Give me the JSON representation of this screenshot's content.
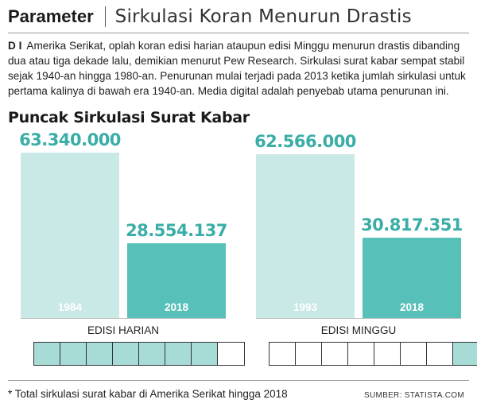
{
  "header": {
    "rubric": "Parameter",
    "headline": "Sirkulasi Koran Menurun Drastis"
  },
  "intro": {
    "dateline": "D I",
    "body": "Amerika Serikat, oplah koran edisi harian ataupun edisi Minggu menurun drastis dibanding dua atau tiga dekade lalu, demikian menurut Pew Research. Sirkulasi surat kabar sempat stabil sejak 1940-an hingga 1980-an. Penurunan mulai terjadi pada 2013 ketika jumlah sirkulasi untuk pertama kalinya di bawah era 1940-an. Media digital adalah penyebab utama penurunan ini."
  },
  "colors": {
    "peak_bar": "#c9e9e6",
    "recent_bar": "#57c1b9",
    "value_text": "#3aaea6",
    "share_filled": "#a6dbd6",
    "share_empty": "#ffffff"
  },
  "chart_data": {
    "type": "bar",
    "title": "Puncak Sirkulasi Surat Kabar",
    "ylim": [
      0,
      70000000
    ],
    "groups": [
      {
        "label": "EDISI HARIAN",
        "bars": [
          {
            "year": "1984",
            "value": 63340000,
            "value_label": "63.340.000"
          },
          {
            "year": "2018",
            "value": 28554137,
            "value_label": "28.554.137"
          }
        ],
        "share_cells": {
          "filled": 7,
          "total": 8,
          "filled_from": "left"
        }
      },
      {
        "label": "EDISI MINGGU",
        "bars": [
          {
            "year": "1993",
            "value": 62566000,
            "value_label": "62.566.000"
          },
          {
            "year": "2018",
            "value": 30817351,
            "value_label": "30.817.351"
          }
        ],
        "share_cells": {
          "filled": 1,
          "total": 8,
          "filled_from": "right"
        }
      }
    ]
  },
  "footer": {
    "footnote": "* Total sirkulasi surat kabar di Amerika Serikat hingga 2018",
    "source": "SUMBER: STATISTA.COM"
  }
}
